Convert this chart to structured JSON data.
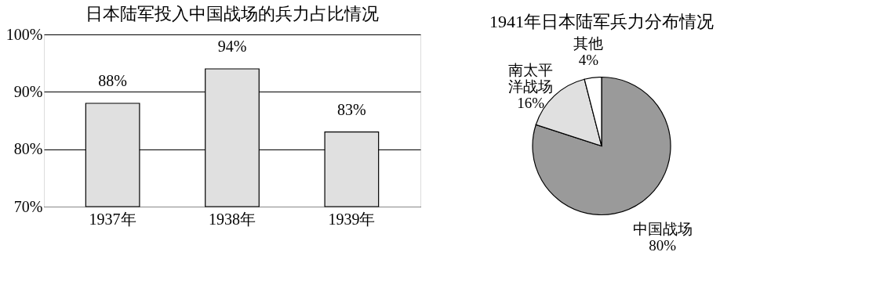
{
  "chart_data": [
    {
      "type": "bar",
      "title": "日本陆军投入中国战场的兵力占比情况",
      "categories": [
        "1937年",
        "1938年",
        "1939年"
      ],
      "values": [
        88,
        94,
        83
      ],
      "color": "#e0e0e0",
      "value_labels": [
        "88%",
        "94%",
        "83%"
      ],
      "ylim": [
        70,
        100
      ],
      "yticks": [
        {
          "value": 70,
          "label": "70%"
        },
        {
          "value": 80,
          "label": "80%"
        },
        {
          "value": 90,
          "label": "90%"
        },
        {
          "value": 100,
          "label": "100%"
        }
      ],
      "grid": "y"
    },
    {
      "type": "pie",
      "title": "1941年日本陆军兵力分布情况",
      "categories": [
        "中国战场",
        "南太平洋战场",
        "其他"
      ],
      "values": [
        80,
        16,
        4
      ],
      "colors": [
        "#9a9a9a",
        "#e0e0e0",
        "#ffffff"
      ],
      "value_labels": [
        "80%",
        "16%",
        "4%"
      ]
    }
  ]
}
